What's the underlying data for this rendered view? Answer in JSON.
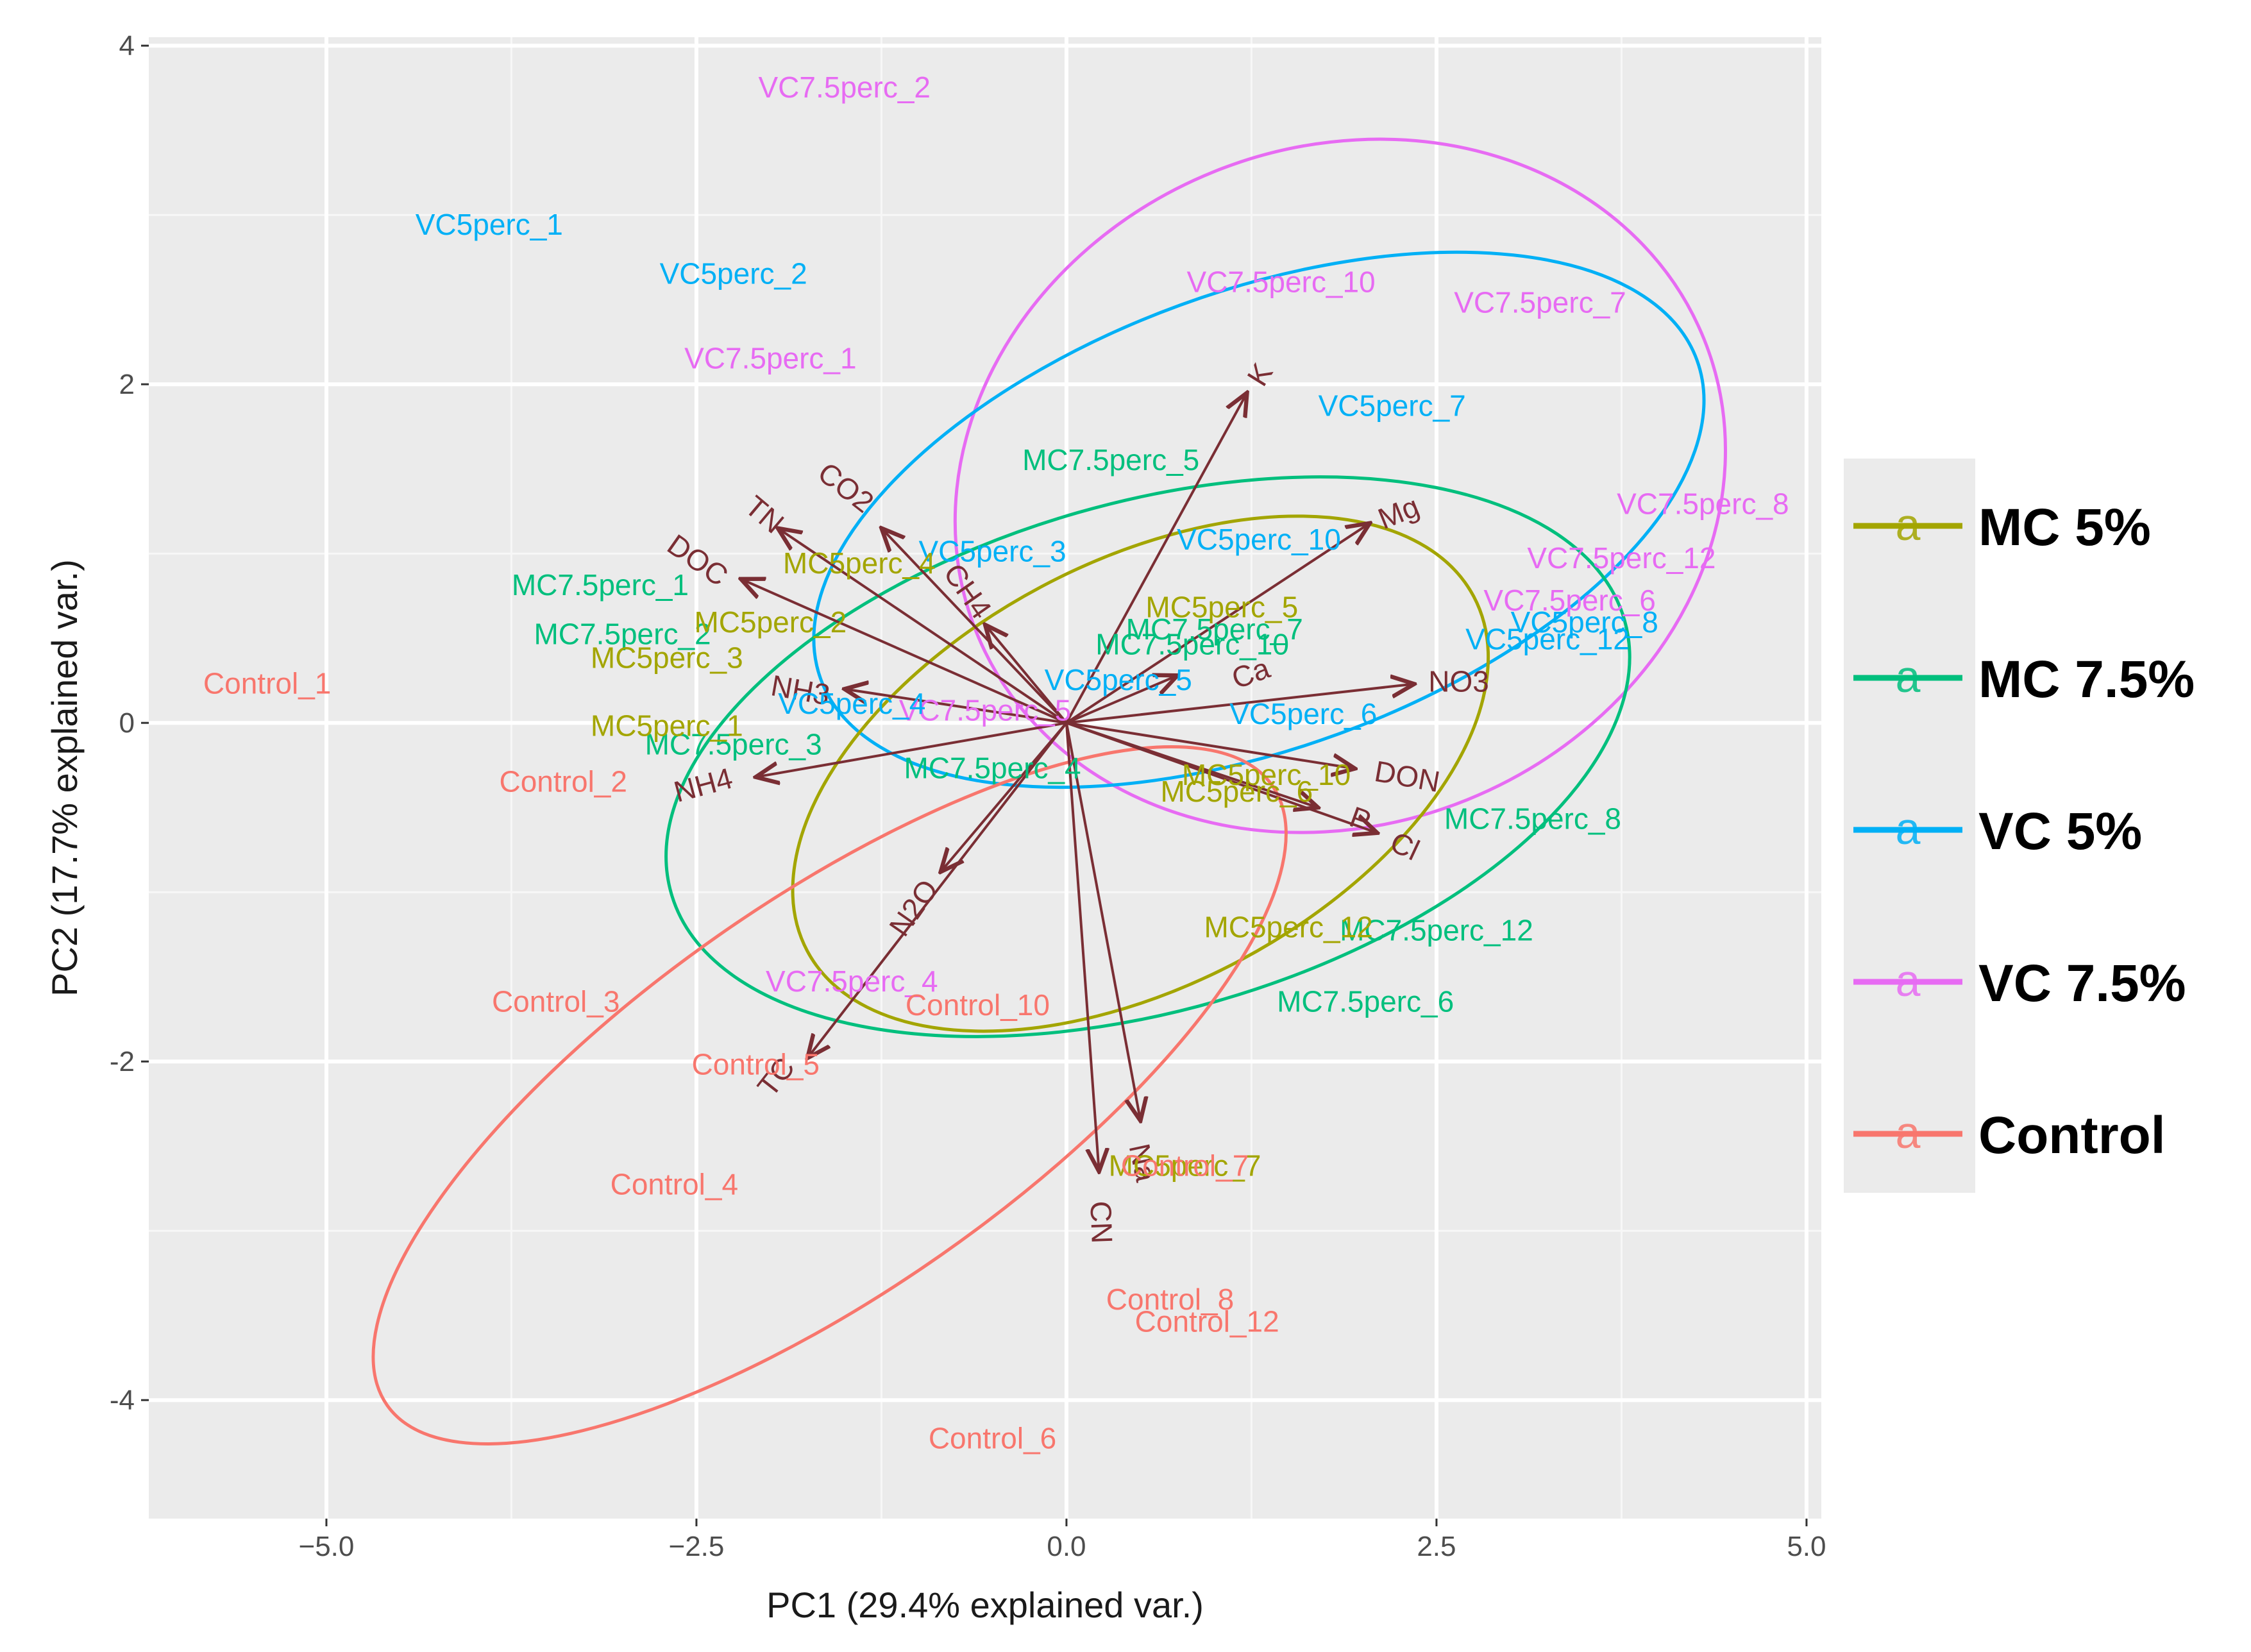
{
  "chart_data": {
    "type": "scatter",
    "subtype": "pca-biplot",
    "xlabel": "PC1 (29.4% explained var.)",
    "ylabel": "PC2 (17.7% explained var.)",
    "xlim": [
      -6.2,
      5.1
    ],
    "ylim": [
      -4.7,
      4.05
    ],
    "xticks": [
      -5.0,
      -2.5,
      0.0,
      2.5,
      5.0
    ],
    "xtick_labels": [
      "−5.0",
      "−2.5",
      "0.0",
      "2.5",
      "5.0"
    ],
    "yticks": [
      -4,
      -2,
      0,
      2,
      4
    ],
    "ytick_labels": [
      "-4",
      "-2",
      "0",
      "2",
      "4"
    ],
    "grid": true,
    "legend_position": "right",
    "groups": [
      {
        "name": "MC 5%",
        "color": "#a3a500"
      },
      {
        "name": "MC 7.5%",
        "color": "#00bf7d"
      },
      {
        "name": "VC 5%",
        "color": "#00b0f6"
      },
      {
        "name": "VC 7.5%",
        "color": "#e76bf3"
      },
      {
        "name": "Control",
        "color": "#f8766d"
      }
    ],
    "ellipses": [
      {
        "group": "VC 7.5%",
        "cx": 1.85,
        "cy": 1.4,
        "rx": 2.65,
        "ry": 2.0,
        "angle": -22
      },
      {
        "group": "VC 5%",
        "cx": 1.3,
        "cy": 1.2,
        "rx": 3.15,
        "ry": 1.35,
        "angle": -20
      },
      {
        "group": "MC 7.5%",
        "cx": 0.55,
        "cy": -0.2,
        "rx": 3.35,
        "ry": 1.5,
        "angle": -16
      },
      {
        "group": "MC 5%",
        "cx": 0.5,
        "cy": -0.3,
        "rx": 2.55,
        "ry": 1.25,
        "angle": -28
      },
      {
        "group": "Control",
        "cx": -1.6,
        "cy": -2.2,
        "rx": 3.65,
        "ry": 1.15,
        "angle": -35
      }
    ],
    "observations": [
      {
        "label": "VC7.5perc_2",
        "x": -1.5,
        "y": 3.74,
        "group": "VC 7.5%"
      },
      {
        "label": "VC7.5perc_10",
        "x": 1.45,
        "y": 2.59,
        "group": "VC 7.5%"
      },
      {
        "label": "VC7.5perc_7",
        "x": 3.2,
        "y": 2.47,
        "group": "VC 7.5%"
      },
      {
        "label": "VC7.5perc_1",
        "x": -2.0,
        "y": 2.14,
        "group": "VC 7.5%"
      },
      {
        "label": "VC7.5perc_8",
        "x": 4.3,
        "y": 1.28,
        "group": "VC 7.5%"
      },
      {
        "label": "VC7.5perc_12",
        "x": 3.75,
        "y": 0.96,
        "group": "VC 7.5%"
      },
      {
        "label": "VC7.5perc_6",
        "x": 3.4,
        "y": 0.71,
        "group": "VC 7.5%"
      },
      {
        "label": "VC7.5perc_5",
        "x": -0.55,
        "y": 0.06,
        "group": "VC 7.5%"
      },
      {
        "label": "VC7.5perc_4",
        "x": -1.45,
        "y": -1.54,
        "group": "VC 7.5%"
      },
      {
        "label": "VC5perc_1",
        "x": -3.9,
        "y": 2.93,
        "group": "VC 5%"
      },
      {
        "label": "VC5perc_2",
        "x": -2.25,
        "y": 2.64,
        "group": "VC 5%"
      },
      {
        "label": "VC5perc_7",
        "x": 2.2,
        "y": 1.86,
        "group": "VC 5%"
      },
      {
        "label": "VC5perc_10",
        "x": 1.3,
        "y": 1.07,
        "group": "VC 5%"
      },
      {
        "label": "VC5perc_3",
        "x": -0.5,
        "y": 1.0,
        "group": "VC 5%"
      },
      {
        "label": "VC5perc_8",
        "x": 3.5,
        "y": 0.58,
        "group": "VC 5%"
      },
      {
        "label": "VC5perc_12",
        "x": 3.25,
        "y": 0.48,
        "group": "VC 5%"
      },
      {
        "label": "VC5perc_5",
        "x": 0.35,
        "y": 0.24,
        "group": "VC 5%"
      },
      {
        "label": "VC5perc_6",
        "x": 1.6,
        "y": 0.04,
        "group": "VC 5%"
      },
      {
        "label": "VC5perc_4",
        "x": -1.45,
        "y": 0.1,
        "group": "VC 5%"
      },
      {
        "label": "MC7.5perc_5",
        "x": 0.3,
        "y": 1.54,
        "group": "MC 7.5%"
      },
      {
        "label": "MC7.5perc_7",
        "x": 1.0,
        "y": 0.54,
        "group": "MC 7.5%"
      },
      {
        "label": "MC7.5perc_10",
        "x": 0.85,
        "y": 0.45,
        "group": "MC 7.5%"
      },
      {
        "label": "MC7.5perc_1",
        "x": -3.15,
        "y": 0.8,
        "group": "MC 7.5%"
      },
      {
        "label": "MC7.5perc_2",
        "x": -3.0,
        "y": 0.51,
        "group": "MC 7.5%"
      },
      {
        "label": "MC7.5perc_3",
        "x": -2.25,
        "y": -0.14,
        "group": "MC 7.5%"
      },
      {
        "label": "MC7.5perc_4",
        "x": -0.5,
        "y": -0.28,
        "group": "MC 7.5%"
      },
      {
        "label": "MC7.5perc_8",
        "x": 3.15,
        "y": -0.58,
        "group": "MC 7.5%"
      },
      {
        "label": "MC7.5perc_12",
        "x": 2.5,
        "y": -1.24,
        "group": "MC 7.5%"
      },
      {
        "label": "MC7.5perc_6",
        "x": 2.02,
        "y": -1.66,
        "group": "MC 7.5%"
      },
      {
        "label": "MC5perc_4",
        "x": -1.4,
        "y": 0.93,
        "group": "MC 5%"
      },
      {
        "label": "MC5perc_5",
        "x": 1.05,
        "y": 0.67,
        "group": "MC 5%"
      },
      {
        "label": "MC5perc_2",
        "x": -2.0,
        "y": 0.58,
        "group": "MC 5%"
      },
      {
        "label": "MC5perc_3",
        "x": -2.7,
        "y": 0.37,
        "group": "MC 5%"
      },
      {
        "label": "MC5perc_1",
        "x": -2.7,
        "y": -0.03,
        "group": "MC 5%"
      },
      {
        "label": "MC5perc_10",
        "x": 1.35,
        "y": -0.32,
        "group": "MC 5%"
      },
      {
        "label": "MC5perc_6",
        "x": 1.15,
        "y": -0.42,
        "group": "MC 5%"
      },
      {
        "label": "MC5perc_12",
        "x": 1.5,
        "y": -1.22,
        "group": "MC 5%"
      },
      {
        "label": "MC5perc_7",
        "x": 0.8,
        "y": -2.63,
        "group": "MC 5%"
      },
      {
        "label": "Control_1",
        "x": -5.4,
        "y": 0.22,
        "group": "Control"
      },
      {
        "label": "Control_2",
        "x": -3.4,
        "y": -0.36,
        "group": "Control"
      },
      {
        "label": "Control_3",
        "x": -3.45,
        "y": -1.66,
        "group": "Control"
      },
      {
        "label": "Control_10",
        "x": -0.6,
        "y": -1.68,
        "group": "Control"
      },
      {
        "label": "Control_5",
        "x": -2.1,
        "y": -2.03,
        "group": "Control"
      },
      {
        "label": "Control_4",
        "x": -2.65,
        "y": -2.74,
        "group": "Control"
      },
      {
        "label": "Control_7",
        "x": 0.8,
        "y": -2.63,
        "group": "Control"
      },
      {
        "label": "Control_8",
        "x": 0.7,
        "y": -3.42,
        "group": "Control"
      },
      {
        "label": "Control_12",
        "x": 0.95,
        "y": -3.55,
        "group": "Control"
      },
      {
        "label": "Control_6",
        "x": -0.5,
        "y": -4.24,
        "group": "Control"
      }
    ],
    "loadings": [
      {
        "label": "K",
        "x": 1.22,
        "y": 1.95,
        "lx": 1.32,
        "ly": 2.05,
        "rot": -58
      },
      {
        "label": "Mg",
        "x": 2.05,
        "y": 1.18,
        "lx": 2.25,
        "ly": 1.23,
        "rot": -22
      },
      {
        "label": "CO2",
        "x": -1.25,
        "y": 1.15,
        "lx": -1.5,
        "ly": 1.38,
        "rot": 38
      },
      {
        "label": "TN",
        "x": -1.95,
        "y": 1.15,
        "lx": -2.05,
        "ly": 1.22,
        "rot": 40
      },
      {
        "label": "CH4",
        "x": -0.55,
        "y": 0.58,
        "lx": -0.68,
        "ly": 0.77,
        "rot": 55
      },
      {
        "label": "DOC",
        "x": -2.2,
        "y": 0.85,
        "lx": -2.5,
        "ly": 0.95,
        "rot": 35
      },
      {
        "label": "Ca",
        "x": 0.75,
        "y": 0.28,
        "lx": 1.25,
        "ly": 0.28,
        "rot": -20
      },
      {
        "label": "NO3",
        "x": 2.35,
        "y": 0.23,
        "lx": 2.65,
        "ly": 0.23,
        "rot": 0
      },
      {
        "label": "NH3",
        "x": -1.5,
        "y": 0.2,
        "lx": -1.8,
        "ly": 0.18,
        "rot": 10
      },
      {
        "label": "DON",
        "x": 1.95,
        "y": -0.27,
        "lx": 2.3,
        "ly": -0.33,
        "rot": 10
      },
      {
        "label": "NH4",
        "x": -2.1,
        "y": -0.32,
        "lx": -2.45,
        "ly": -0.38,
        "rot": -15
      },
      {
        "label": "P",
        "x": 1.7,
        "y": -0.5,
        "lx": 1.98,
        "ly": -0.58,
        "rot": 20
      },
      {
        "label": "Cl",
        "x": 2.1,
        "y": -0.65,
        "lx": 2.28,
        "ly": -0.74,
        "rot": 25
      },
      {
        "label": "N2O",
        "x": -0.85,
        "y": -0.88,
        "lx": -1.02,
        "ly": -1.1,
        "rot": -55
      },
      {
        "label": "TC",
        "x": -1.75,
        "y": -1.98,
        "lx": -1.95,
        "ly": -2.1,
        "rot": -52
      },
      {
        "label": "CN",
        "x": 0.22,
        "y": -2.65,
        "lx": 0.22,
        "ly": -2.95,
        "rot": 88
      },
      {
        "label": "Na",
        "x": 0.5,
        "y": -2.35,
        "lx": 0.5,
        "ly": -2.6,
        "rot": 78
      }
    ]
  }
}
